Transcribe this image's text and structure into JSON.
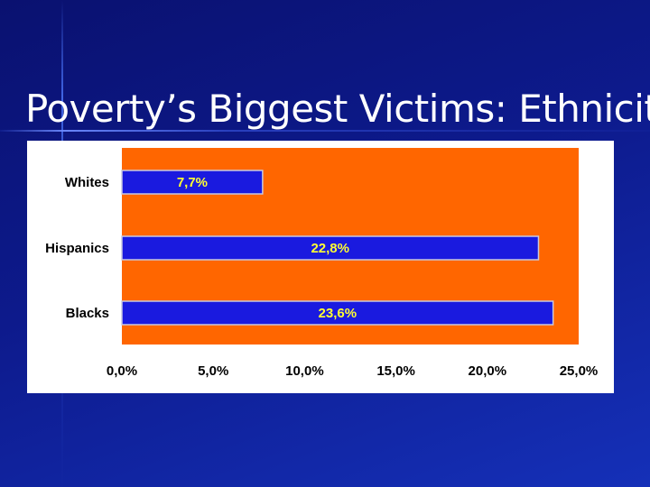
{
  "slide": {
    "title": "Poverty’s Biggest Victims: Ethnicity"
  },
  "colors": {
    "background": "#0d1a8c",
    "plot_area": "#ff6600",
    "bar_fill": "#1a1adf",
    "data_label": "#ffff33",
    "panel": "#ffffff"
  },
  "chart_data": {
    "type": "bar",
    "orientation": "horizontal",
    "title": "",
    "categories": [
      "Whites",
      "Hispanics",
      "Blacks"
    ],
    "values": [
      7.7,
      22.8,
      23.6
    ],
    "data_labels": [
      "7,7%",
      "22,8%",
      "23,6%"
    ],
    "xlim": [
      0,
      25
    ],
    "x_ticks": [
      0,
      5,
      10,
      15,
      20,
      25
    ],
    "x_tick_labels": [
      "0,0%",
      "5,0%",
      "10,0%",
      "15,0%",
      "20,0%",
      "25,0%"
    ],
    "xlabel": "",
    "ylabel": "",
    "grid": false,
    "legend": "none"
  }
}
